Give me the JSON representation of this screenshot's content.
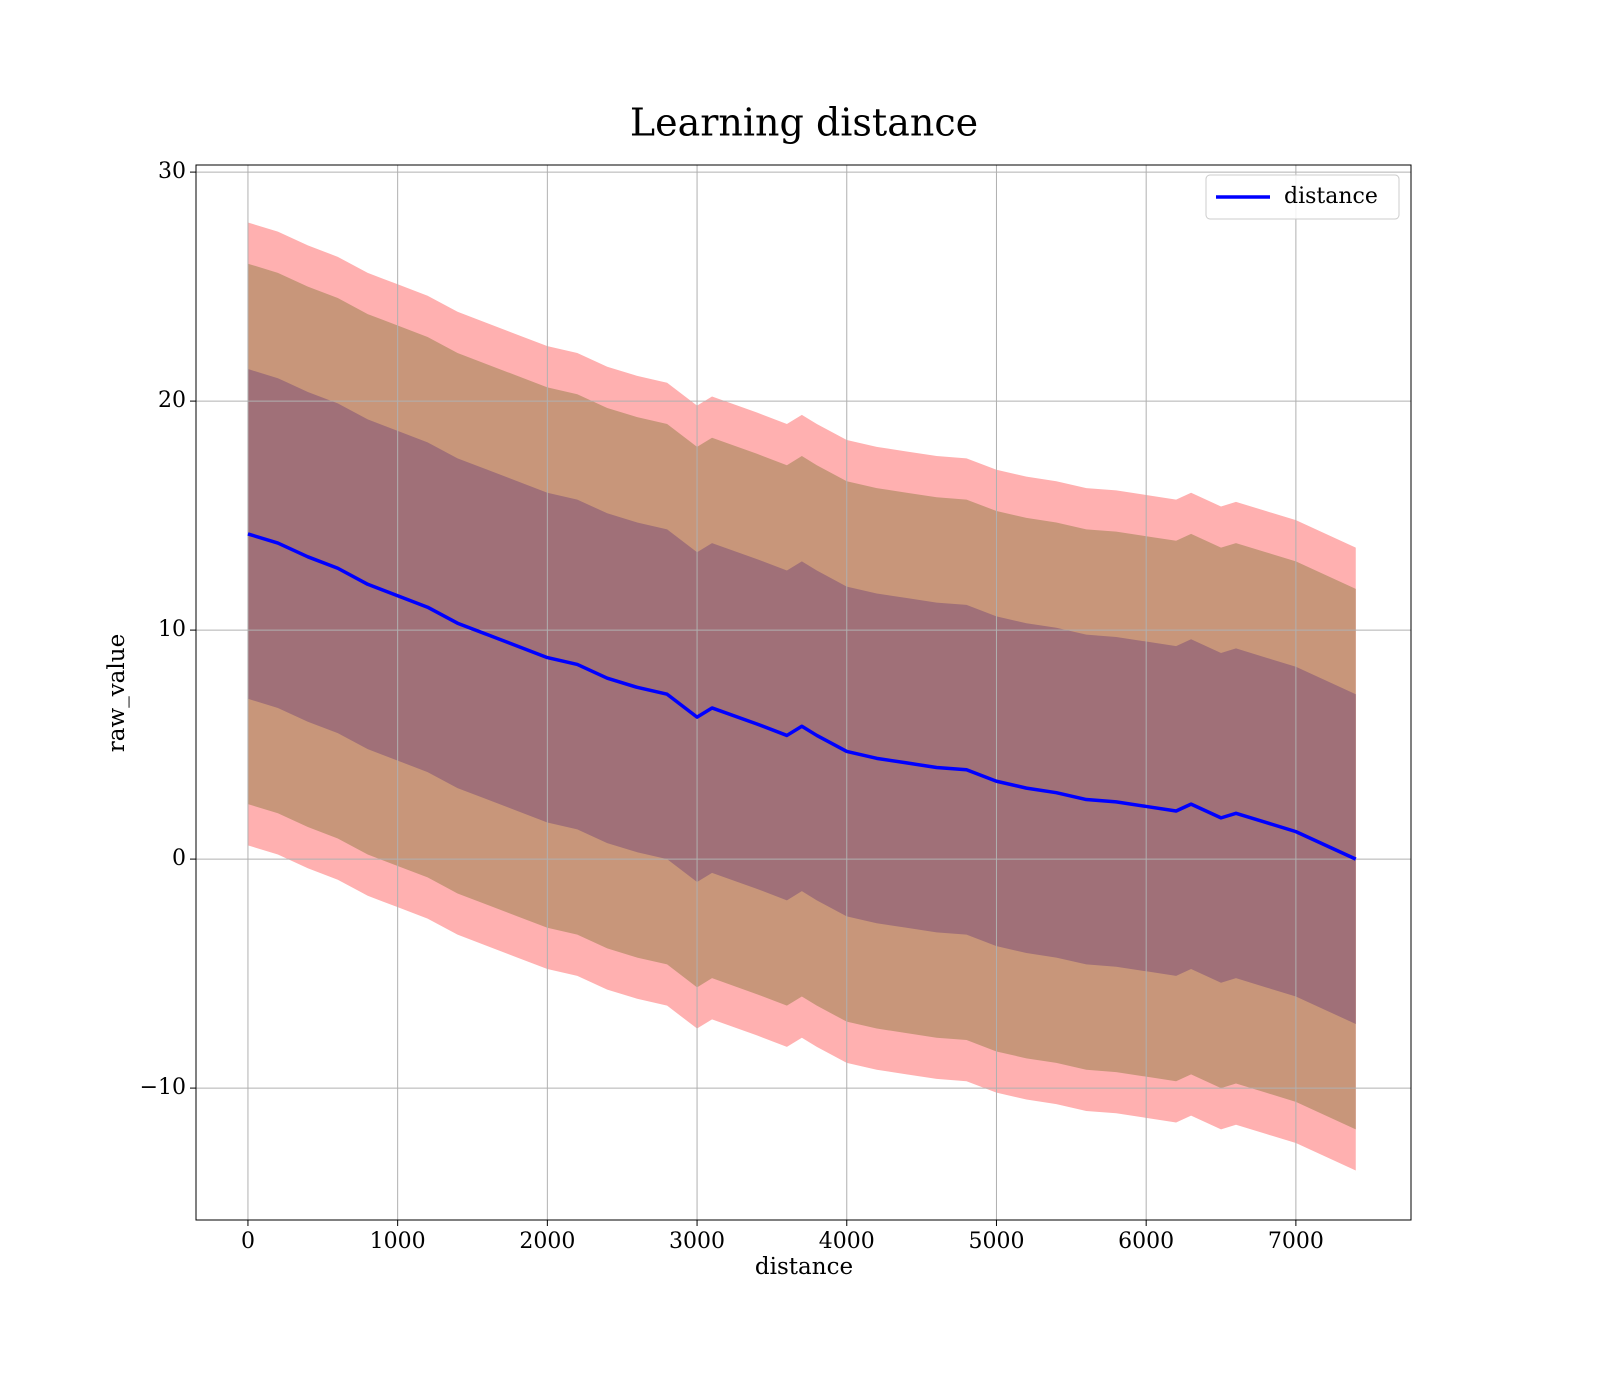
{
  "chart_data": {
    "type": "line",
    "title": "Learning distance",
    "x_label": "distance",
    "y_label": "raw_value",
    "x": [
      0,
      200,
      400,
      600,
      800,
      1000,
      1200,
      1400,
      1600,
      1800,
      2000,
      2200,
      2400,
      2600,
      2800,
      3000,
      3100,
      3400,
      3600,
      3700,
      3800,
      4000,
      4200,
      4400,
      4600,
      4800,
      5000,
      5200,
      5400,
      5600,
      5800,
      6000,
      6200,
      6300,
      6500,
      6600,
      6800,
      7000,
      7200,
      7400
    ],
    "series": [
      {
        "name": "distance",
        "color": "#0000ff",
        "values": [
          14.2,
          13.8,
          13.2,
          12.7,
          12.0,
          11.5,
          11.0,
          10.3,
          9.8,
          9.3,
          8.8,
          8.5,
          7.9,
          7.5,
          7.2,
          6.2,
          6.6,
          5.9,
          5.4,
          5.8,
          5.4,
          4.7,
          4.4,
          4.2,
          4.0,
          3.9,
          3.4,
          3.1,
          2.9,
          2.6,
          2.5,
          2.3,
          2.1,
          2.4,
          1.8,
          2.0,
          1.6,
          1.2,
          0.6,
          0
        ]
      }
    ],
    "bands": [
      {
        "width": 13.6,
        "color": "#ffb0b0"
      },
      {
        "width": 11.8,
        "color": "#c8967a"
      },
      {
        "width": 7.2,
        "color": "#a07078"
      }
    ],
    "xlim": [
      -347,
      7769
    ],
    "ylim": [
      -15.76,
      30.31
    ],
    "xticks": [
      0,
      1000,
      2000,
      3000,
      4000,
      5000,
      6000,
      7000
    ],
    "yticks": [
      -10,
      0,
      10,
      20,
      30
    ],
    "grid": true,
    "legend": "upper right"
  }
}
